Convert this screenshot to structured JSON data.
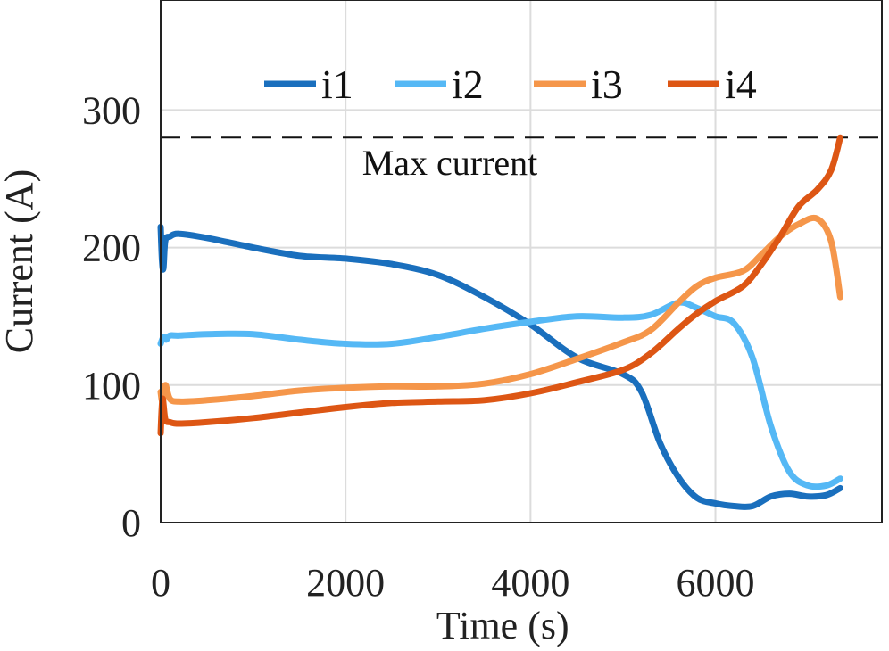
{
  "chart_data": {
    "type": "line",
    "xlabel": "Time (s)",
    "ylabel": "Current (A)",
    "xlim": [
      0,
      7800
    ],
    "ylim": [
      0,
      380
    ],
    "xticks": [
      "0",
      "2000",
      "4000",
      "6000"
    ],
    "xtick_values": [
      0,
      2000,
      4000,
      6000
    ],
    "yticks": [
      "0",
      "100",
      "200",
      "300"
    ],
    "ytick_values": [
      0,
      100,
      200,
      300
    ],
    "grid": true,
    "legend_placement": "top",
    "reference_line": {
      "y": 280,
      "label": "Max current",
      "style": "dashed"
    },
    "series": [
      {
        "name": "i1",
        "color": "#1a6fbd",
        "x": [
          0,
          15,
          30,
          50,
          100,
          200,
          500,
          1000,
          1500,
          2000,
          2500,
          3000,
          3500,
          4000,
          4500,
          5000,
          5200,
          5400,
          5600,
          5800,
          6000,
          6200,
          6400,
          6600,
          6800,
          7000,
          7200,
          7350
        ],
        "y": [
          215,
          190,
          185,
          205,
          208,
          210,
          207,
          200,
          194,
          192,
          188,
          180,
          164,
          144,
          120,
          108,
          95,
          58,
          33,
          18,
          14,
          12,
          12,
          19,
          21,
          19,
          20,
          25
        ]
      },
      {
        "name": "i2",
        "color": "#55b8f5",
        "x": [
          0,
          30,
          60,
          100,
          200,
          500,
          1000,
          1500,
          2000,
          2500,
          3000,
          3500,
          4000,
          4500,
          5000,
          5300,
          5600,
          5800,
          6000,
          6200,
          6400,
          6600,
          6800,
          7000,
          7200,
          7350
        ],
        "y": [
          130,
          135,
          133,
          136,
          136,
          137,
          137,
          133,
          130,
          130,
          135,
          141,
          146,
          150,
          149,
          151,
          160,
          156,
          150,
          145,
          120,
          70,
          37,
          27,
          27,
          32
        ]
      },
      {
        "name": "i3",
        "color": "#f5964a",
        "x": [
          0,
          20,
          50,
          100,
          200,
          500,
          1000,
          1500,
          2000,
          2500,
          3000,
          3500,
          4000,
          4500,
          5000,
          5300,
          5600,
          5800,
          6000,
          6300,
          6500,
          6700,
          6900,
          7100,
          7250,
          7350
        ],
        "y": [
          95,
          88,
          100,
          90,
          88,
          89,
          92,
          96,
          98,
          99,
          99,
          101,
          108,
          119,
          131,
          140,
          160,
          172,
          178,
          183,
          195,
          208,
          217,
          221,
          205,
          164
        ]
      },
      {
        "name": "i4",
        "color": "#dd5614",
        "x": [
          0,
          20,
          50,
          100,
          200,
          500,
          1000,
          1500,
          2000,
          2500,
          3000,
          3500,
          4000,
          4500,
          5000,
          5300,
          5600,
          5800,
          6000,
          6300,
          6500,
          6700,
          6900,
          7100,
          7250,
          7350
        ],
        "y": [
          65,
          90,
          75,
          73,
          72,
          73,
          76,
          80,
          84,
          87,
          88,
          89,
          94,
          102,
          111,
          123,
          141,
          152,
          161,
          172,
          188,
          208,
          230,
          242,
          256,
          280
        ]
      }
    ]
  }
}
